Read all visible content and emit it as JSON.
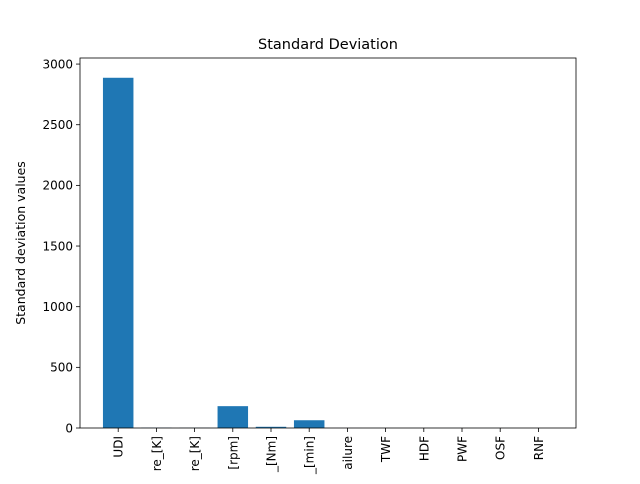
{
  "chart_data": {
    "type": "bar",
    "title": "Standard Deviation",
    "xlabel": "",
    "ylabel": "Standard deviation values",
    "categories": [
      "UDI",
      "re_[K]",
      "re_[K]",
      "[rpm]",
      "_[Nm]",
      "_[min]",
      "ailure",
      "TWF",
      "HDF",
      "PWF",
      "OSF",
      "RNF"
    ],
    "values": [
      2887,
      2,
      1.5,
      180,
      10,
      64,
      0.18,
      0.07,
      0.1,
      0.1,
      0.1,
      0.04
    ],
    "ylim": [
      0,
      3050
    ],
    "yticks": [
      0,
      500,
      1000,
      1500,
      2000,
      2500,
      3000
    ],
    "bar_color": "#1f77b4",
    "grid": false,
    "legend": "none"
  }
}
